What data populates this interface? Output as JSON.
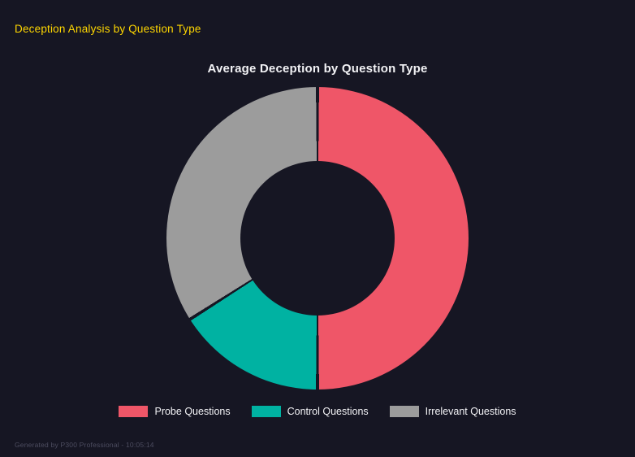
{
  "header": {
    "title": "Deception Analysis by Question Type",
    "accent_color": "#ffd700"
  },
  "chart_data": {
    "type": "pie",
    "subtype": "donut",
    "title": "Average Deception by Question Type",
    "categories": [
      "Probe Questions",
      "Control Questions",
      "Irrelevant Questions"
    ],
    "values": [
      50,
      16,
      34
    ],
    "unit": "percent-of-circle (estimated from arc angles)",
    "colors": [
      "#ef5668",
      "#00b2a2",
      "#9c9c9c"
    ],
    "cutout": "51%",
    "legend_position": "bottom",
    "background_color": "#161623"
  },
  "footer": {
    "text": "Generated by P300 Professional - 10:05:14"
  }
}
